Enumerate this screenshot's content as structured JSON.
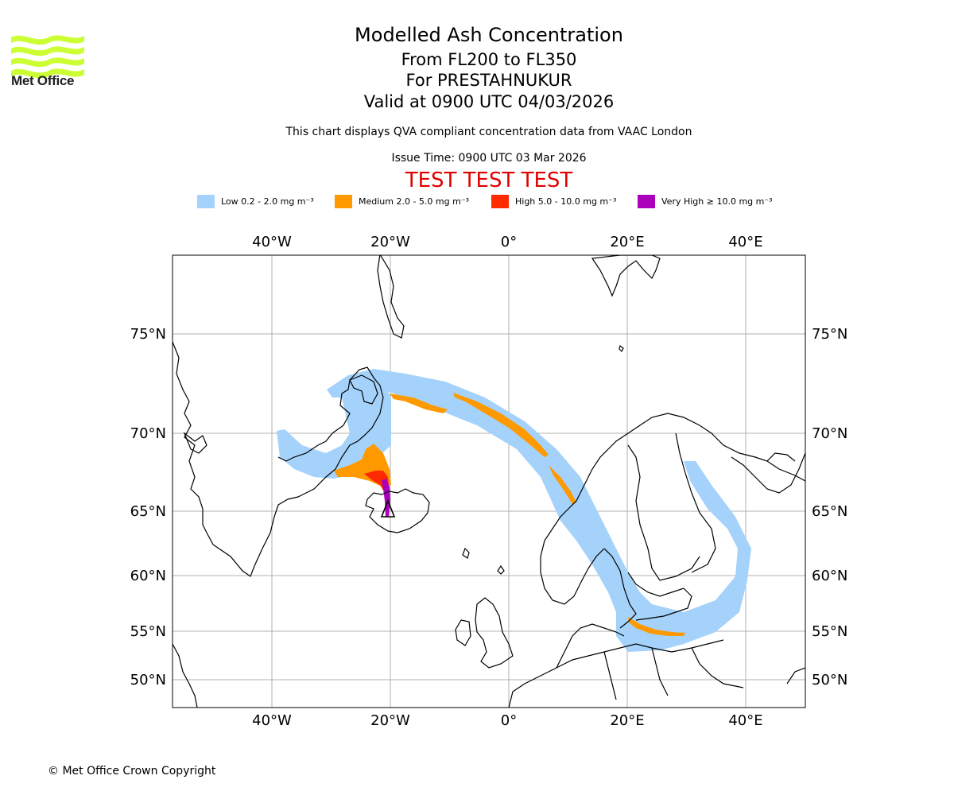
{
  "header": {
    "title": "Modelled Ash Concentration",
    "levels": "From FL200 to FL350",
    "volcano": "For PRESTAHNUKUR",
    "valid": "Valid at 0900 UTC 04/03/2026",
    "note": "This chart displays QVA compliant concentration data from VAAC London",
    "issue": "Issue Time: 0900 UTC 03 Mar 2026",
    "test_banner": "TEST TEST TEST"
  },
  "logo": {
    "text": "Met Office"
  },
  "legend": [
    {
      "label": "Low 0.2 - 2.0 mg m⁻³",
      "color": "#a4d2fb"
    },
    {
      "label": "Medium 2.0 - 5.0 mg m⁻³",
      "color": "#ff9900"
    },
    {
      "label": "High 5.0 - 10.0 mg m⁻³",
      "color": "#ff2a00"
    },
    {
      "label": "Very High ≥ 10.0 mg m⁻³",
      "color": "#aa00bb"
    }
  ],
  "map": {
    "lon_labels": [
      "40°W",
      "20°W",
      "0°",
      "20°E",
      "40°E"
    ],
    "lat_labels": [
      "75°N",
      "70°N",
      "65°N",
      "60°N",
      "55°N",
      "50°N"
    ]
  },
  "footer": {
    "copyright": "© Met Office Crown Copyright"
  }
}
